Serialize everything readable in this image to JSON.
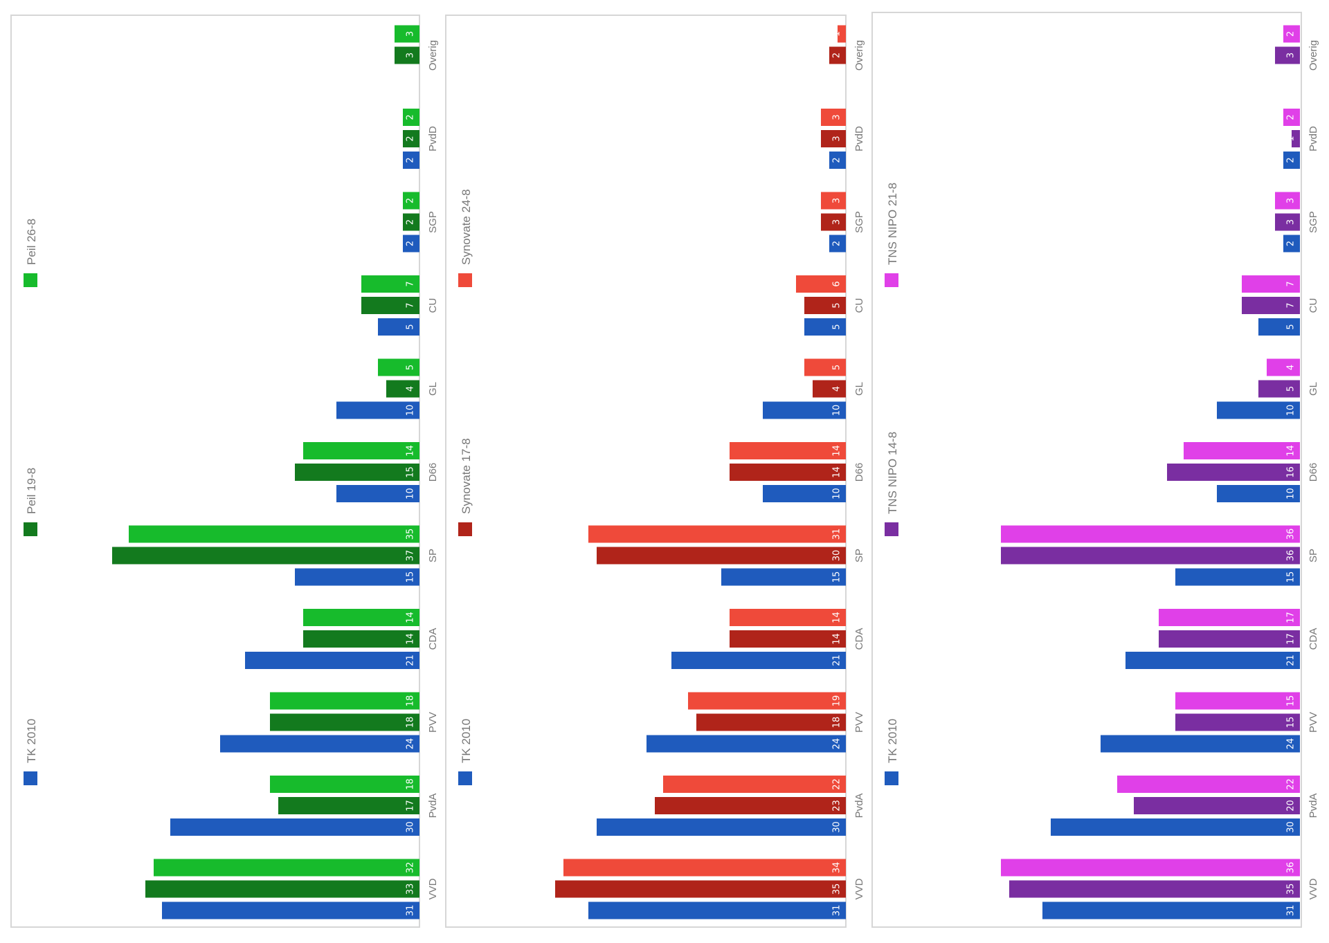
{
  "chart_data": [
    {
      "type": "bar",
      "orientation": "horizontal-bars-rotated-view",
      "categories": [
        "VVD",
        "PvdA",
        "PVV",
        "CDA",
        "SP",
        "D66",
        "GL",
        "CU",
        "SGP",
        "PvdD",
        "Overig"
      ],
      "series": [
        {
          "name": "TK 2010",
          "color": "#1f5bbd",
          "values": [
            31,
            30,
            24,
            21,
            15,
            10,
            10,
            5,
            2,
            2,
            0
          ]
        },
        {
          "name": "Peil 19-8",
          "color": "#137a1e",
          "values": [
            33,
            17,
            18,
            14,
            37,
            15,
            4,
            7,
            2,
            2,
            3
          ]
        },
        {
          "name": "Peil 26-8",
          "color": "#17bb2c",
          "values": [
            32,
            18,
            18,
            14,
            35,
            14,
            5,
            7,
            2,
            2,
            3
          ]
        }
      ],
      "legend": "top",
      "xlim": [
        0,
        40
      ]
    },
    {
      "type": "bar",
      "orientation": "horizontal-bars-rotated-view",
      "categories": [
        "VVD",
        "PvdA",
        "PVV",
        "CDA",
        "SP",
        "D66",
        "GL",
        "CU",
        "SGP",
        "PvdD",
        "Overig"
      ],
      "series": [
        {
          "name": "TK 2010",
          "color": "#1f5bbd",
          "values": [
            31,
            30,
            24,
            21,
            15,
            10,
            10,
            5,
            2,
            2,
            0
          ]
        },
        {
          "name": "Synovate 17-8",
          "color": "#b0241a",
          "values": [
            35,
            23,
            18,
            14,
            30,
            14,
            4,
            5,
            3,
            3,
            2
          ]
        },
        {
          "name": "Synovate 24-8",
          "color": "#ef4a3a",
          "values": [
            34,
            22,
            19,
            14,
            31,
            14,
            5,
            6,
            3,
            3,
            1
          ]
        }
      ],
      "legend": "top",
      "xlim": [
        0,
        40
      ]
    },
    {
      "type": "bar",
      "orientation": "horizontal-bars-rotated-view",
      "categories": [
        "VVD",
        "PvdA",
        "PVV",
        "CDA",
        "SP",
        "D66",
        "GL",
        "CU",
        "SGP",
        "PvdD",
        "Overig"
      ],
      "series": [
        {
          "name": "TK 2010",
          "color": "#1f5bbd",
          "values": [
            31,
            30,
            24,
            21,
            15,
            10,
            10,
            5,
            2,
            2,
            0
          ]
        },
        {
          "name": "TNS NIPO 14-8",
          "color": "#7a2ea1",
          "values": [
            35,
            20,
            15,
            17,
            36,
            16,
            5,
            7,
            3,
            1,
            3
          ]
        },
        {
          "name": "TNS NIPO 21-8",
          "color": "#e040e8",
          "values": [
            36,
            22,
            15,
            17,
            36,
            14,
            4,
            7,
            3,
            2,
            2
          ]
        }
      ],
      "legend": "top",
      "xlim": [
        0,
        40
      ]
    }
  ]
}
